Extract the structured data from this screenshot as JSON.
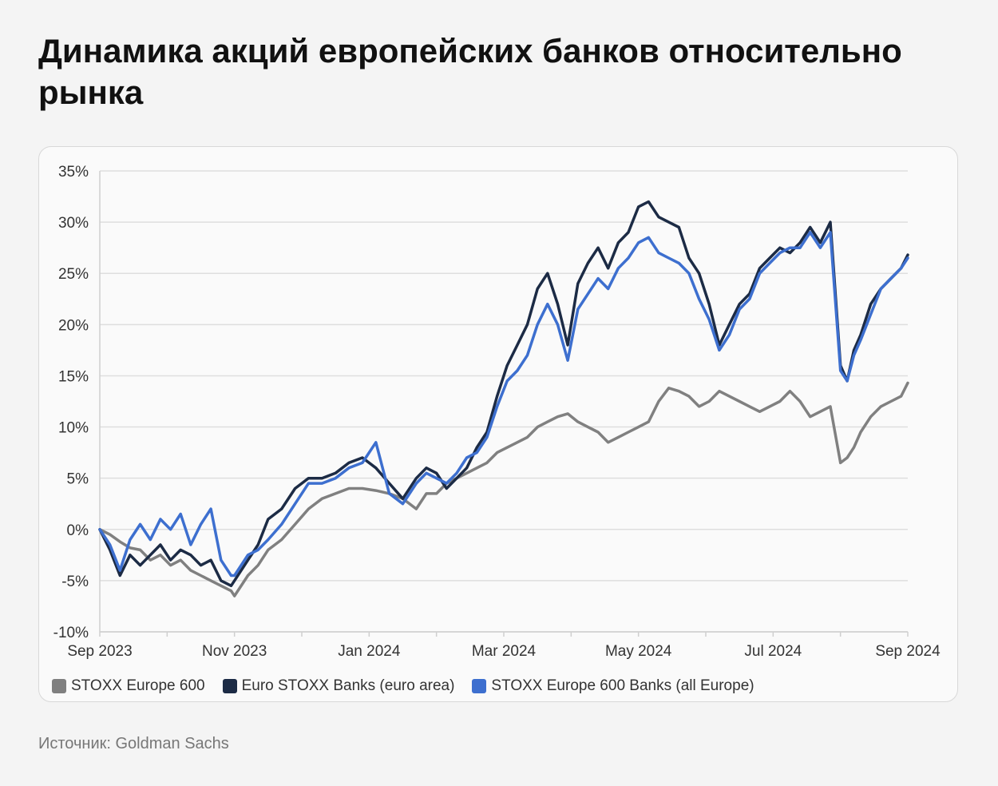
{
  "title": "Динамика акций европейских банков относительно рынка",
  "source": "Источник: Goldman Sachs",
  "chart_data": {
    "type": "line",
    "y_ticks": [
      "35%",
      "30%",
      "25%",
      "20%",
      "15%",
      "10%",
      "5%",
      "0%",
      "-5%",
      "-10%"
    ],
    "ylim": [
      -10,
      35
    ],
    "x_ticks": [
      "Sep 2023",
      "Nov 2023",
      "Jan 2024",
      "Mar 2024",
      "May 2024",
      "Jul 2024",
      "Sep 2024"
    ],
    "x_tick_positions": [
      0,
      2,
      4,
      6,
      8,
      10,
      12
    ],
    "xlim": [
      0,
      12
    ],
    "grid": true,
    "legend_position": "bottom-left",
    "series": [
      {
        "name": "STOXX Europe 600",
        "color": "#808080",
        "x": [
          0,
          0.15,
          0.3,
          0.45,
          0.6,
          0.75,
          0.9,
          1.05,
          1.2,
          1.35,
          1.5,
          1.65,
          1.8,
          1.95,
          2.0,
          2.2,
          2.35,
          2.5,
          2.7,
          2.9,
          3.1,
          3.3,
          3.5,
          3.7,
          3.9,
          4.1,
          4.3,
          4.5,
          4.7,
          4.85,
          5.0,
          5.15,
          5.3,
          5.45,
          5.6,
          5.75,
          5.9,
          6.05,
          6.2,
          6.35,
          6.5,
          6.65,
          6.8,
          6.95,
          7.1,
          7.25,
          7.4,
          7.55,
          7.7,
          7.85,
          8.0,
          8.15,
          8.3,
          8.45,
          8.6,
          8.75,
          8.9,
          9.05,
          9.2,
          9.35,
          9.5,
          9.65,
          9.8,
          9.95,
          10.1,
          10.25,
          10.4,
          10.55,
          10.7,
          10.85,
          11.0,
          11.1,
          11.2,
          11.3,
          11.45,
          11.6,
          11.75,
          11.9,
          12.0
        ],
        "values": [
          0,
          -0.5,
          -1.2,
          -1.8,
          -2.0,
          -3.0,
          -2.5,
          -3.5,
          -3.0,
          -4.0,
          -4.5,
          -5.0,
          -5.5,
          -6.0,
          -6.5,
          -4.5,
          -3.5,
          -2.0,
          -1.0,
          0.5,
          2.0,
          3.0,
          3.5,
          4.0,
          4.0,
          3.8,
          3.5,
          3.0,
          2.0,
          3.5,
          3.5,
          4.5,
          5.0,
          5.5,
          6.0,
          6.5,
          7.5,
          8.0,
          8.5,
          9.0,
          10.0,
          10.5,
          11.0,
          11.3,
          10.5,
          10.0,
          9.5,
          8.5,
          9.0,
          9.5,
          10.0,
          10.5,
          12.5,
          13.8,
          13.5,
          13.0,
          12.0,
          12.5,
          13.5,
          13.0,
          12.5,
          12.0,
          11.5,
          12.0,
          12.5,
          13.5,
          12.5,
          11.0,
          11.5,
          12.0,
          6.5,
          7.0,
          8.0,
          9.5,
          11.0,
          12.0,
          12.5,
          13.0,
          14.3
        ]
      },
      {
        "name": "Euro STOXX Banks (euro area)",
        "color": "#1c2b45",
        "x": [
          0,
          0.15,
          0.3,
          0.45,
          0.6,
          0.75,
          0.9,
          1.05,
          1.2,
          1.35,
          1.5,
          1.65,
          1.8,
          1.95,
          2.0,
          2.2,
          2.35,
          2.5,
          2.7,
          2.9,
          3.1,
          3.3,
          3.5,
          3.7,
          3.9,
          4.1,
          4.3,
          4.5,
          4.7,
          4.85,
          5.0,
          5.15,
          5.3,
          5.45,
          5.6,
          5.75,
          5.9,
          6.05,
          6.2,
          6.35,
          6.5,
          6.65,
          6.8,
          6.95,
          7.1,
          7.25,
          7.4,
          7.55,
          7.7,
          7.85,
          8.0,
          8.15,
          8.3,
          8.45,
          8.6,
          8.75,
          8.9,
          9.05,
          9.2,
          9.35,
          9.5,
          9.65,
          9.8,
          9.95,
          10.1,
          10.25,
          10.4,
          10.55,
          10.7,
          10.85,
          11.0,
          11.1,
          11.2,
          11.3,
          11.45,
          11.6,
          11.75,
          11.9,
          12.0
        ],
        "values": [
          0,
          -2.0,
          -4.5,
          -2.5,
          -3.5,
          -2.5,
          -1.5,
          -3.0,
          -2.0,
          -2.5,
          -3.5,
          -3.0,
          -5.0,
          -5.5,
          -5.0,
          -3.0,
          -1.5,
          1.0,
          2.0,
          4.0,
          5.0,
          5.0,
          5.5,
          6.5,
          7.0,
          6.0,
          4.5,
          3.0,
          5.0,
          6.0,
          5.5,
          4.0,
          5.0,
          6.0,
          8.0,
          9.5,
          13.0,
          16.0,
          18.0,
          20.0,
          23.5,
          25.0,
          22.0,
          18.0,
          24.0,
          26.0,
          27.5,
          25.5,
          28.0,
          29.0,
          31.5,
          32.0,
          30.5,
          30.0,
          29.5,
          26.5,
          25.0,
          22.0,
          18.0,
          20.0,
          22.0,
          23.0,
          25.5,
          26.5,
          27.5,
          27.0,
          28.0,
          29.5,
          28.0,
          30.0,
          16.0,
          14.5,
          17.5,
          19.0,
          22.0,
          23.5,
          24.5,
          25.5,
          26.8
        ]
      },
      {
        "name": "STOXX Europe 600 Banks (all Europe)",
        "color": "#3d6fcf",
        "x": [
          0,
          0.15,
          0.3,
          0.45,
          0.6,
          0.75,
          0.9,
          1.05,
          1.2,
          1.35,
          1.5,
          1.65,
          1.8,
          1.95,
          2.0,
          2.2,
          2.35,
          2.5,
          2.7,
          2.9,
          3.1,
          3.3,
          3.5,
          3.7,
          3.9,
          4.1,
          4.3,
          4.5,
          4.7,
          4.85,
          5.0,
          5.15,
          5.3,
          5.45,
          5.6,
          5.75,
          5.9,
          6.05,
          6.2,
          6.35,
          6.5,
          6.65,
          6.8,
          6.95,
          7.1,
          7.25,
          7.4,
          7.55,
          7.7,
          7.85,
          8.0,
          8.15,
          8.3,
          8.45,
          8.6,
          8.75,
          8.9,
          9.05,
          9.2,
          9.35,
          9.5,
          9.65,
          9.8,
          9.95,
          10.1,
          10.25,
          10.4,
          10.55,
          10.7,
          10.85,
          11.0,
          11.1,
          11.2,
          11.3,
          11.45,
          11.6,
          11.75,
          11.9,
          12.0
        ],
        "values": [
          0,
          -1.5,
          -4.0,
          -1.0,
          0.5,
          -1.0,
          1.0,
          0.0,
          1.5,
          -1.5,
          0.5,
          2.0,
          -3.0,
          -4.5,
          -4.5,
          -2.5,
          -2.0,
          -1.0,
          0.5,
          2.5,
          4.5,
          4.5,
          5.0,
          6.0,
          6.5,
          8.5,
          3.5,
          2.5,
          4.5,
          5.5,
          5.0,
          4.5,
          5.5,
          7.0,
          7.5,
          9.0,
          12.0,
          14.5,
          15.5,
          17.0,
          20.0,
          22.0,
          20.0,
          16.5,
          21.5,
          23.0,
          24.5,
          23.5,
          25.5,
          26.5,
          28.0,
          28.5,
          27.0,
          26.5,
          26.0,
          25.0,
          22.5,
          20.5,
          17.5,
          19.0,
          21.5,
          22.5,
          25.0,
          26.0,
          27.0,
          27.5,
          27.5,
          29.0,
          27.5,
          29.0,
          15.5,
          14.5,
          17.0,
          18.5,
          21.0,
          23.5,
          24.5,
          25.5,
          26.5
        ]
      }
    ]
  }
}
